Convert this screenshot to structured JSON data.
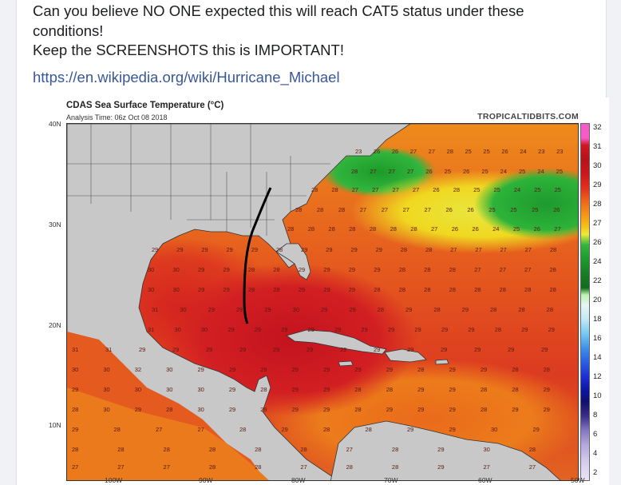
{
  "post": {
    "line1": "Can you believe NO ONE expected this will reach CAT5 status under these",
    "line2": "conditions!",
    "line3": "Keep the SCREENSHOTS this is IMPORTANT!",
    "link": "https://en.wikipedia.org/wiki/Hurricane_Michael"
  },
  "map": {
    "title": "CDAS Sea Surface Temperature (°C)",
    "subtitle": "Analysis Time: 06z Oct 08 2018",
    "credit": "TROPICALTIDBITS.COM",
    "lat_labels": [
      "40N",
      "30N",
      "20N",
      "10N"
    ],
    "lon_labels": [
      "100W",
      "90W",
      "80W",
      "70W",
      "60W",
      "50W"
    ],
    "colorbar_labels": [
      "32",
      "31",
      "30",
      "29",
      "28",
      "27",
      "26",
      "24",
      "22",
      "20",
      "18",
      "16",
      "14",
      "12",
      "10",
      "8",
      "6",
      "4",
      "2"
    ],
    "sst_values": [
      "23",
      "26",
      "26",
      "27",
      "27",
      "28",
      "25",
      "25",
      "26",
      "24",
      "23",
      "23",
      "28",
      "27",
      "27",
      "27",
      "26",
      "25",
      "26",
      "25",
      "24",
      "25",
      "24",
      "25",
      "28",
      "28",
      "27",
      "27",
      "27",
      "27",
      "26",
      "28",
      "25",
      "25",
      "24",
      "25",
      "25",
      "28",
      "28",
      "28",
      "27",
      "27",
      "27",
      "27",
      "26",
      "26",
      "25",
      "25",
      "25",
      "26",
      "28",
      "28",
      "28",
      "28",
      "28",
      "28",
      "28",
      "27",
      "26",
      "26",
      "24",
      "25",
      "26",
      "27",
      "29",
      "29",
      "29",
      "29",
      "29",
      "28",
      "29",
      "29",
      "29",
      "29",
      "28",
      "28",
      "27",
      "27",
      "27",
      "27",
      "28",
      "30",
      "30",
      "29",
      "29",
      "28",
      "28",
      "29",
      "29",
      "29",
      "29",
      "28",
      "28",
      "28",
      "27",
      "27",
      "27",
      "28",
      "30",
      "30",
      "29",
      "29",
      "28",
      "28",
      "29",
      "29",
      "29",
      "28",
      "28",
      "28",
      "28",
      "28",
      "28",
      "28",
      "28",
      "31",
      "30",
      "29",
      "29",
      "29",
      "30",
      "29",
      "29",
      "28",
      "29",
      "28",
      "29",
      "28",
      "28",
      "28",
      "31",
      "30",
      "30",
      "29",
      "29",
      "29",
      "29",
      "29",
      "29",
      "29",
      "29",
      "29",
      "29",
      "28",
      "29",
      "29",
      "31",
      "31",
      "29",
      "29",
      "29",
      "29",
      "29",
      "29",
      "29",
      "29",
      "29",
      "29",
      "29",
      "29",
      "29",
      "30",
      "30",
      "32",
      "30",
      "29",
      "29",
      "29",
      "29",
      "29",
      "29",
      "29",
      "28",
      "29",
      "29",
      "28",
      "28",
      "29",
      "30",
      "30",
      "30",
      "30",
      "29",
      "28",
      "29",
      "29",
      "28",
      "28",
      "29",
      "29",
      "28",
      "28",
      "29",
      "28",
      "30",
      "29",
      "28",
      "30",
      "29",
      "29",
      "29",
      "29",
      "28",
      "29",
      "29",
      "29",
      "28",
      "29",
      "29",
      "29",
      "28",
      "27",
      "27",
      "28",
      "29",
      "28",
      "28",
      "29",
      "29",
      "30",
      "29",
      "28",
      "28",
      "28",
      "28",
      "28",
      "28",
      "27",
      "28",
      "29",
      "30",
      "28",
      "27",
      "27",
      "27",
      "28",
      "28",
      "27",
      "28",
      "28",
      "29",
      "27",
      "27"
    ]
  }
}
